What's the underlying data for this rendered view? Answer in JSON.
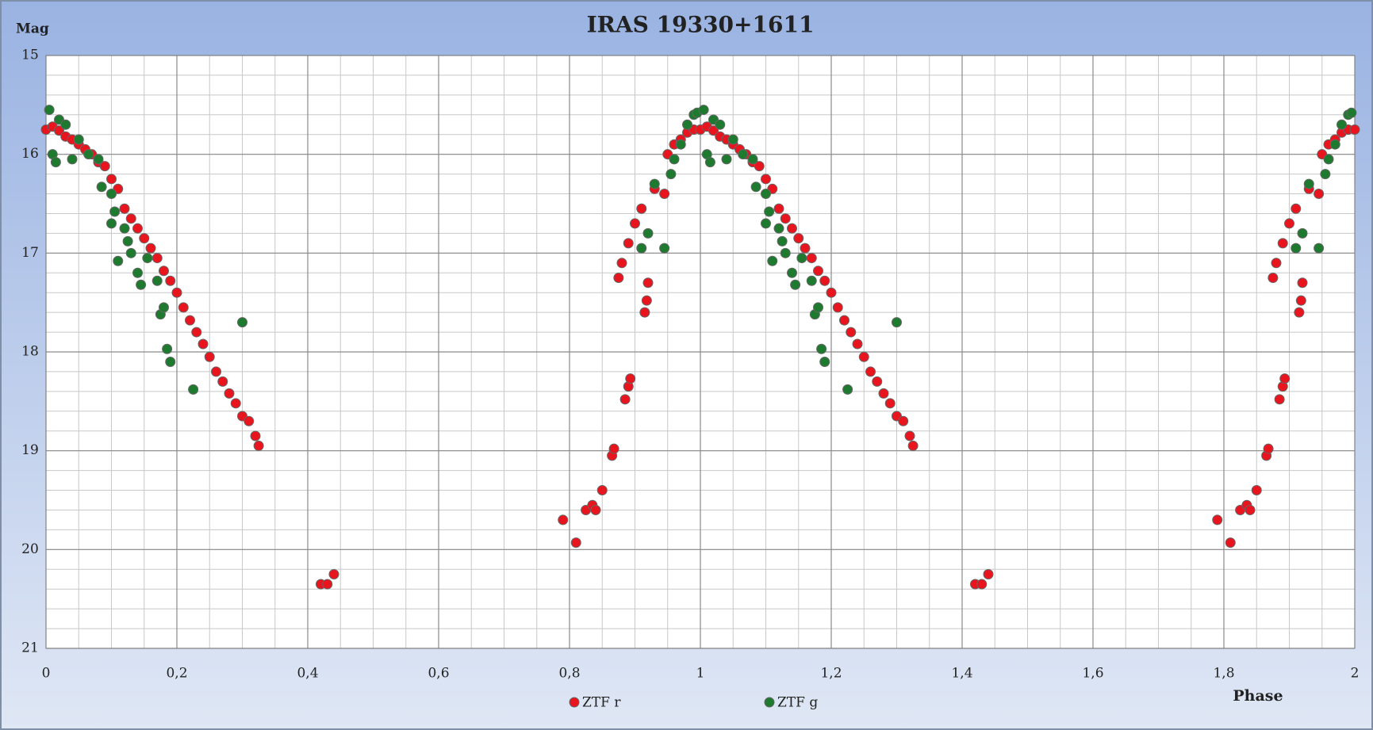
{
  "chart_data": {
    "type": "scatter",
    "title": "IRAS 19330+1611",
    "ylabel": "Mag",
    "xlabel": "Phase",
    "xlim": [
      0,
      2
    ],
    "ylim": [
      15,
      21
    ],
    "y_inverted": true,
    "xticks": [
      0,
      {
        "value": 0.2,
        "label": "0,2"
      },
      {
        "value": 0.4,
        "label": "0,4"
      },
      {
        "value": 0.6,
        "label": "0,6"
      },
      {
        "value": 0.8,
        "label": "0,8"
      },
      1,
      {
        "value": 1.2,
        "label": "1,2"
      },
      {
        "value": 1.4,
        "label": "1,4"
      },
      {
        "value": 1.6,
        "label": "1,6"
      },
      {
        "value": 1.8,
        "label": "1,8"
      },
      2
    ],
    "yticks": [
      15,
      16,
      17,
      18,
      19,
      20,
      21
    ],
    "grid": true,
    "x_minor_step": 0.05,
    "y_minor_step": 0.2,
    "legend": "bottom",
    "series": [
      {
        "name": "ZTF r",
        "color": "#e8141e",
        "x": [
          0,
          0.01,
          0.02,
          0.03,
          0.04,
          0.05,
          0.06,
          0.07,
          0.08,
          0.09,
          0.1,
          0.11,
          0.12,
          0.13,
          0.14,
          0.15,
          0.16,
          0.17,
          0.18,
          0.19,
          0.2,
          0.21,
          0.22,
          0.23,
          0.24,
          0.25,
          0.26,
          0.27,
          0.28,
          0.29,
          0.3,
          0.31,
          0.32,
          0.325,
          0.42,
          0.43,
          0.44,
          0.79,
          0.81,
          0.825,
          0.835,
          0.84,
          0.85,
          0.865,
          0.868,
          0.885,
          0.89,
          0.893,
          0.875,
          0.88,
          0.89,
          0.9,
          0.91,
          0.915,
          0.918,
          0.92,
          0.93,
          0.945,
          0.95,
          0.96,
          0.97,
          0.98,
          0.99,
          1,
          1.01,
          1.02,
          1.03,
          1.04,
          1.05,
          1.06,
          1.07,
          1.08,
          1.09,
          1.1,
          1.11,
          1.12,
          1.13,
          1.14,
          1.15,
          1.16,
          1.17,
          1.18,
          1.19,
          1.2,
          1.21,
          1.22,
          1.23,
          1.24,
          1.25,
          1.26,
          1.27,
          1.28,
          1.29,
          1.3,
          1.31,
          1.32,
          1.325,
          1.42,
          1.43,
          1.44,
          1.79,
          1.81,
          1.825,
          1.835,
          1.84,
          1.85,
          1.865,
          1.868,
          1.885,
          1.89,
          1.893,
          1.875,
          1.88,
          1.89,
          1.9,
          1.91,
          1.915,
          1.918,
          1.92,
          1.93,
          1.945,
          1.95,
          1.96,
          1.97,
          1.98,
          1.99,
          2
        ],
        "values": [
          15.75,
          15.72,
          15.76,
          15.82,
          15.85,
          15.9,
          15.95,
          16.0,
          16.08,
          16.12,
          16.25,
          16.35,
          16.55,
          16.65,
          16.75,
          16.85,
          16.95,
          17.05,
          17.18,
          17.28,
          17.4,
          17.55,
          17.68,
          17.8,
          17.92,
          18.05,
          18.2,
          18.3,
          18.42,
          18.52,
          18.65,
          18.7,
          18.85,
          18.95,
          20.35,
          20.35,
          20.25,
          19.7,
          19.93,
          19.6,
          19.55,
          19.6,
          19.4,
          19.05,
          18.98,
          18.48,
          18.35,
          18.27,
          17.25,
          17.1,
          16.9,
          16.7,
          16.55,
          17.6,
          17.48,
          17.3,
          16.35,
          16.4,
          16.0,
          15.9,
          15.85,
          15.78,
          15.75,
          15.75,
          15.72,
          15.76,
          15.82,
          15.85,
          15.9,
          15.95,
          16.0,
          16.08,
          16.12,
          16.25,
          16.35,
          16.55,
          16.65,
          16.75,
          16.85,
          16.95,
          17.05,
          17.18,
          17.28,
          17.4,
          17.55,
          17.68,
          17.8,
          17.92,
          18.05,
          18.2,
          18.3,
          18.42,
          18.52,
          18.65,
          18.7,
          18.85,
          18.95,
          20.35,
          20.35,
          20.25,
          19.7,
          19.93,
          19.6,
          19.55,
          19.6,
          19.4,
          19.05,
          18.98,
          18.48,
          18.35,
          18.27,
          17.25,
          17.1,
          16.9,
          16.7,
          16.55,
          17.6,
          17.48,
          17.3,
          16.35,
          16.4,
          16.0,
          15.9,
          15.85,
          15.78,
          15.75,
          15.75
        ]
      },
      {
        "name": "ZTF g",
        "color": "#1e7a2e",
        "x": [
          0.005,
          0.01,
          0.015,
          0.02,
          0.03,
          0.04,
          0.05,
          0.065,
          0.08,
          0.085,
          0.1,
          0.1,
          0.105,
          0.11,
          0.12,
          0.125,
          0.13,
          0.14,
          0.145,
          0.155,
          0.17,
          0.175,
          0.18,
          0.185,
          0.19,
          0.225,
          0.3,
          0.91,
          0.92,
          0.93,
          0.945,
          0.955,
          0.96,
          0.97,
          0.98,
          0.99,
          0.995,
          1.005,
          1.01,
          1.015,
          1.02,
          1.03,
          1.04,
          1.05,
          1.065,
          1.08,
          1.085,
          1.1,
          1.1,
          1.105,
          1.11,
          1.12,
          1.125,
          1.13,
          1.14,
          1.145,
          1.155,
          1.17,
          1.175,
          1.18,
          1.185,
          1.19,
          1.225,
          1.3,
          1.91,
          1.92,
          1.93,
          1.945,
          1.955,
          1.96,
          1.97,
          1.98,
          1.99,
          1.995
        ],
        "values": [
          15.55,
          16.0,
          16.08,
          15.65,
          15.7,
          16.05,
          15.85,
          16.0,
          16.05,
          16.33,
          16.4,
          16.7,
          16.58,
          17.08,
          16.75,
          16.88,
          17.0,
          17.2,
          17.32,
          17.05,
          17.28,
          17.62,
          17.55,
          17.97,
          18.1,
          18.38,
          17.7,
          16.95,
          16.8,
          16.3,
          16.95,
          16.2,
          16.05,
          15.9,
          15.7,
          15.6,
          15.58,
          15.55,
          16.0,
          16.08,
          15.65,
          15.7,
          16.05,
          15.85,
          16.0,
          16.05,
          16.33,
          16.4,
          16.7,
          16.58,
          17.08,
          16.75,
          16.88,
          17.0,
          17.2,
          17.32,
          17.05,
          17.28,
          17.62,
          17.55,
          17.97,
          18.1,
          18.38,
          17.7,
          16.95,
          16.8,
          16.3,
          16.95,
          16.2,
          16.05,
          15.9,
          15.7,
          15.6,
          15.58
        ]
      }
    ]
  }
}
